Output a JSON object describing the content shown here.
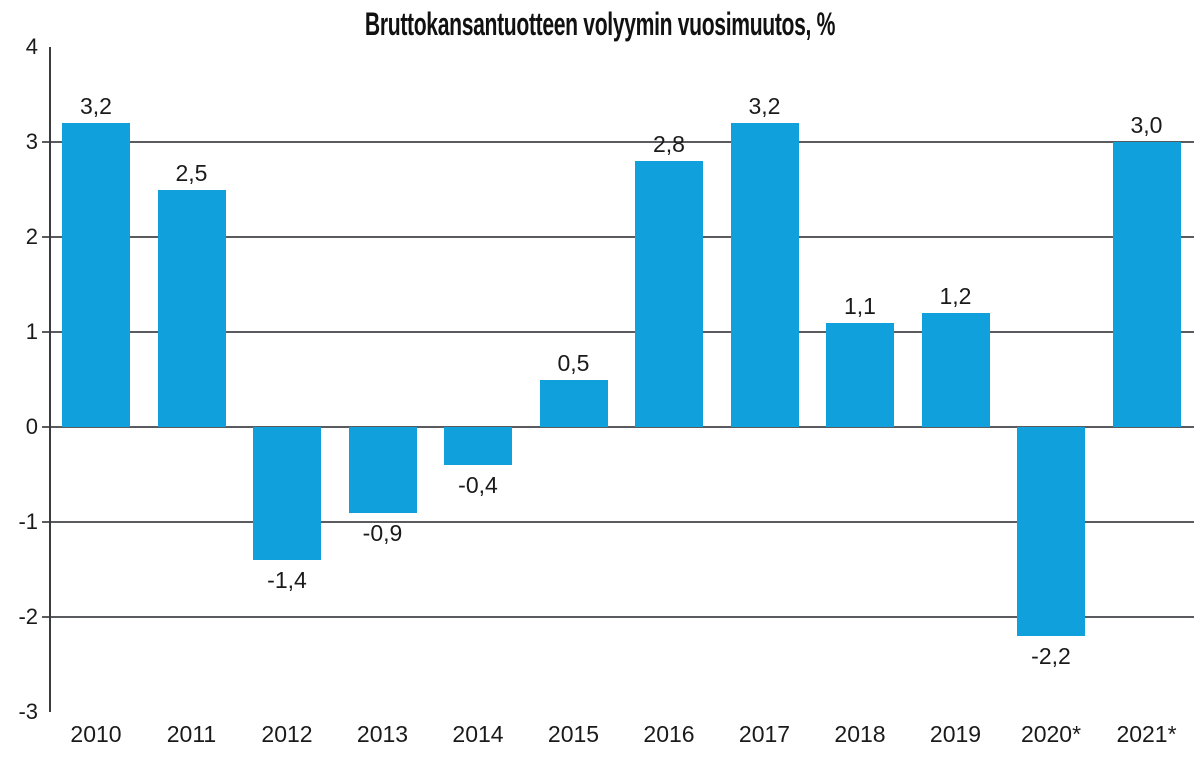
{
  "chart_data": {
    "type": "bar",
    "title": "Bruttokansantuotteen volyymin vuosimuutos, %",
    "categories": [
      "2010",
      "2011",
      "2012",
      "2013",
      "2014",
      "2015",
      "2016",
      "2017",
      "2018",
      "2019",
      "2020*",
      "2021*"
    ],
    "values": [
      3.2,
      2.5,
      -1.4,
      -0.9,
      -0.4,
      0.5,
      2.8,
      3.2,
      1.1,
      1.2,
      -2.2,
      3.0
    ],
    "value_labels": [
      "3,2",
      "2,5",
      "-1,4",
      "-0,9",
      "-0,4",
      "0,5",
      "2,8",
      "3,2",
      "1,1",
      "1,2",
      "-2,2",
      "3,0"
    ],
    "xlabel": "",
    "ylabel": "",
    "ylim": [
      -3,
      4
    ],
    "ytick_values": [
      4,
      3,
      2,
      1,
      0,
      -1,
      -2,
      -3
    ],
    "ytick_labels": [
      "4",
      "3",
      "2",
      "1",
      "0",
      "-1",
      "-2",
      "-3"
    ],
    "gridline_values": [
      3,
      2,
      1,
      0,
      -1,
      -2
    ],
    "grid": true,
    "legend": "none",
    "decimal_separator": ",",
    "colors": {
      "bar": "#10a0dc",
      "grid": "#5a5b5e",
      "axis": "#3a3b3e",
      "text": "#1a1a1a"
    }
  }
}
